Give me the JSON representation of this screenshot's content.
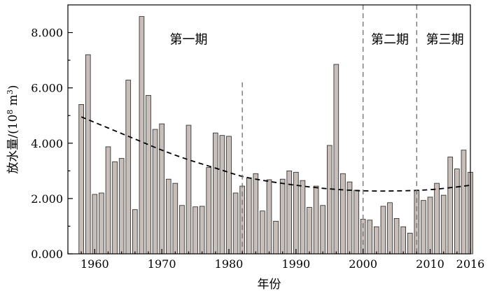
{
  "chart_data": {
    "type": "bar",
    "title": "",
    "xlabel": "年份",
    "ylabel_main": "放水量/(10",
    "ylabel_sup": "8",
    "ylabel_unit": " m",
    "ylabel_sup2": "3",
    "ylabel_close": ")",
    "xlim": [
      1956,
      2016
    ],
    "ylim": [
      0,
      9
    ],
    "x_ticks": [
      {
        "value": 1960,
        "label": "1960"
      },
      {
        "value": 1970,
        "label": "1970"
      },
      {
        "value": 1980,
        "label": "1980"
      },
      {
        "value": 1990,
        "label": "1990"
      },
      {
        "value": 2000,
        "label": "2000"
      },
      {
        "value": 2010,
        "label": "2010"
      },
      {
        "value": 2016,
        "label": "2016"
      }
    ],
    "y_ticks": [
      {
        "value": 0,
        "label": "0.000"
      },
      {
        "value": 2,
        "label": "2.000"
      },
      {
        "value": 4,
        "label": "4.000"
      },
      {
        "value": 6,
        "label": "6.000"
      },
      {
        "value": 8,
        "label": "8.000"
      }
    ],
    "years": [
      1958,
      1959,
      1960,
      1961,
      1962,
      1963,
      1964,
      1965,
      1966,
      1967,
      1968,
      1969,
      1970,
      1971,
      1972,
      1973,
      1974,
      1975,
      1976,
      1977,
      1978,
      1979,
      1980,
      1981,
      1982,
      1983,
      1984,
      1985,
      1986,
      1987,
      1988,
      1989,
      1990,
      1991,
      1992,
      1993,
      1994,
      1995,
      1996,
      1997,
      1998,
      1999,
      2000,
      2001,
      2002,
      2003,
      2004,
      2005,
      2006,
      2007,
      2008,
      2009,
      2010,
      2011,
      2012,
      2013,
      2014,
      2015,
      2016
    ],
    "values": [
      5.4,
      7.2,
      2.15,
      2.2,
      3.87,
      3.33,
      3.45,
      6.28,
      1.6,
      8.58,
      5.73,
      4.5,
      4.7,
      2.7,
      2.55,
      1.75,
      4.65,
      1.7,
      1.72,
      3.12,
      4.37,
      4.28,
      4.25,
      2.2,
      2.45,
      2.75,
      2.9,
      1.55,
      2.68,
      1.18,
      2.7,
      3.0,
      2.95,
      2.65,
      1.68,
      2.45,
      1.75,
      3.92,
      6.85,
      2.9,
      2.6,
      2.3,
      1.25,
      1.22,
      0.98,
      1.72,
      1.85,
      1.28,
      0.98,
      0.75,
      2.3,
      1.93,
      2.05,
      2.55,
      2.12,
      3.5,
      3.07,
      3.75,
      2.95
    ],
    "trend_points": [
      [
        1958,
        4.95
      ],
      [
        1962,
        4.55
      ],
      [
        1966,
        4.15
      ],
      [
        1970,
        3.75
      ],
      [
        1974,
        3.4
      ],
      [
        1978,
        3.1
      ],
      [
        1982,
        2.8
      ],
      [
        1986,
        2.62
      ],
      [
        1990,
        2.48
      ],
      [
        1994,
        2.37
      ],
      [
        1998,
        2.3
      ],
      [
        2002,
        2.27
      ],
      [
        2006,
        2.28
      ],
      [
        2010,
        2.32
      ],
      [
        2014,
        2.42
      ],
      [
        2016,
        2.48
      ]
    ],
    "dividers": [
      {
        "x": 1982,
        "y_top": 6.2
      },
      {
        "x": 2000,
        "y_top": 9
      },
      {
        "x": 2008,
        "y_top": 9
      }
    ],
    "periods": [
      {
        "label": "第一期",
        "x": 1974,
        "y": 7.6
      },
      {
        "label": "第二期",
        "x": 2004,
        "y": 7.6
      },
      {
        "label": "第三期",
        "x": 2012.2,
        "y": 7.6
      }
    ]
  }
}
